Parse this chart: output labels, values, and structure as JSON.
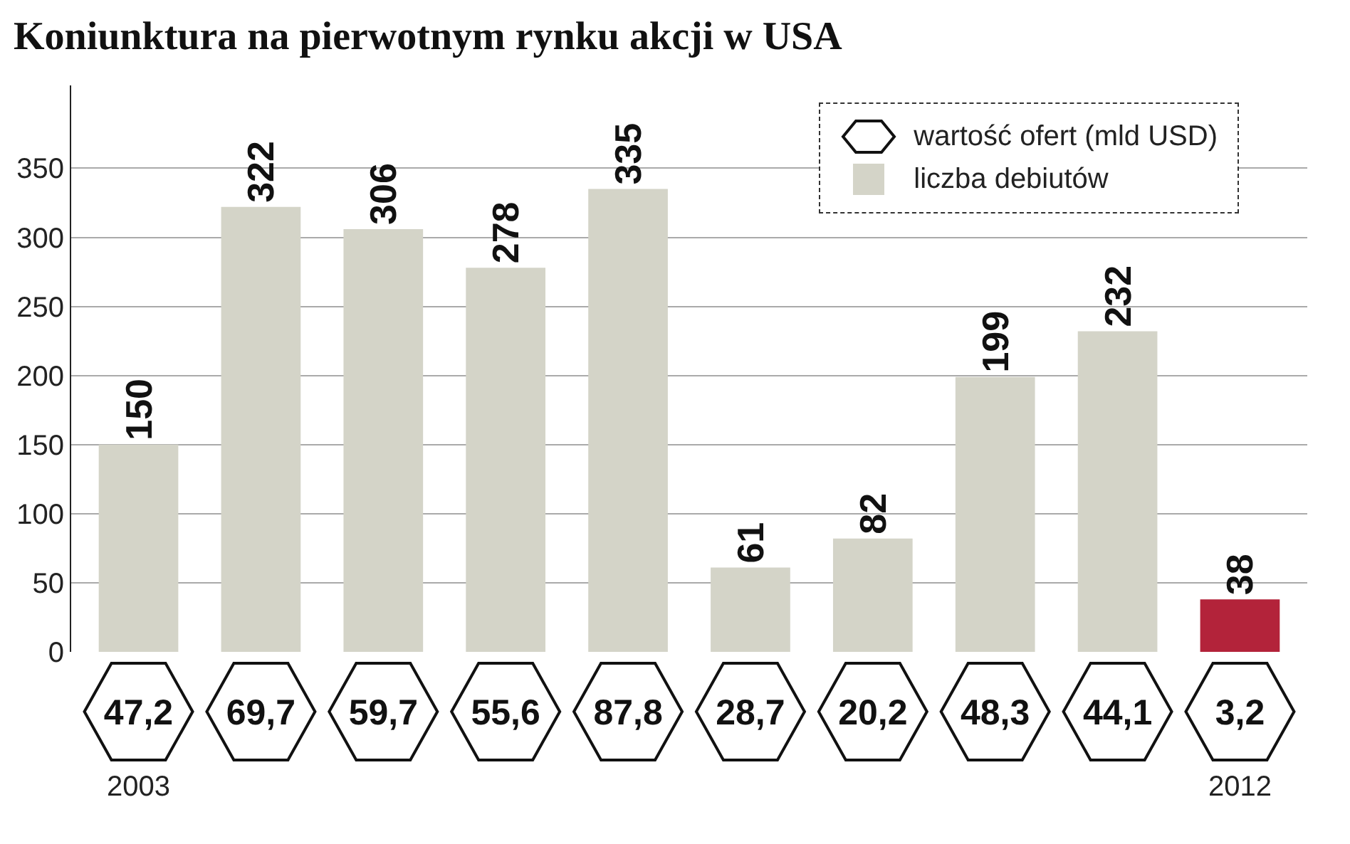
{
  "chart_data": {
    "type": "bar",
    "title": "Koniunktura na pierwotnym rynku akcji w USA",
    "categories": [
      "2003",
      null,
      null,
      null,
      null,
      null,
      null,
      null,
      null,
      "2012"
    ],
    "series": [
      {
        "name": "liczba debiutów",
        "color": "#d4d4c8",
        "colors": [
          "#d4d4c8",
          "#d4d4c8",
          "#d4d4c8",
          "#d4d4c8",
          "#d4d4c8",
          "#d4d4c8",
          "#d4d4c8",
          "#d4d4c8",
          "#d4d4c8",
          "#b3233a"
        ],
        "values": [
          150,
          322,
          306,
          278,
          335,
          61,
          82,
          199,
          232,
          38
        ]
      }
    ],
    "annotations": [
      "wartość ofert (mld USD)",
      "47,2",
      "69,7",
      "59,7",
      "55,6",
      "87,8",
      "28,7",
      "20,2",
      "48,3",
      "44,1",
      "3,2"
    ],
    "ylim": [
      0,
      410
    ],
    "yticks": [
      0,
      50,
      100,
      150,
      200,
      250,
      300,
      350
    ],
    "grid": "y",
    "legend": "top right",
    "data_labels": true
  }
}
